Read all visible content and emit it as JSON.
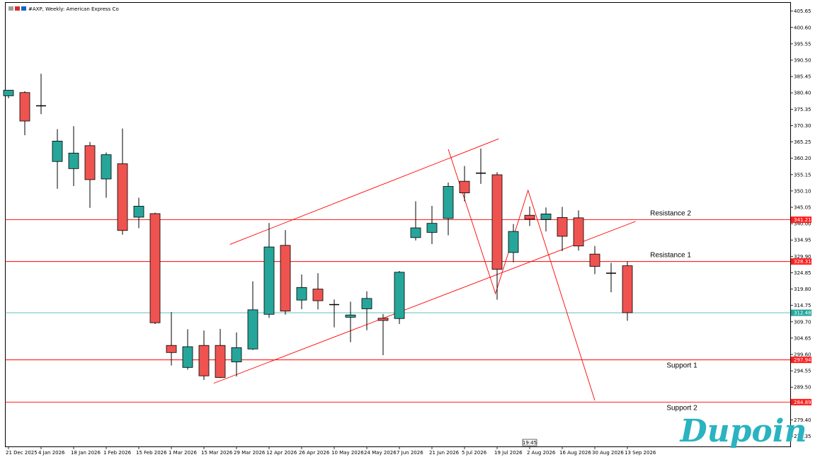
{
  "header": {
    "title": "#AXP, Weekly:  American Express Co"
  },
  "brand": {
    "logo_text": "Dupoin"
  },
  "time_badge": "19:45",
  "colors": {
    "bull": "#26a69a",
    "bear": "#ef5350",
    "level_line": "#ff0000",
    "current_line": "#4db6ac",
    "tag_red": "#ff1f1f",
    "tag_teal": "#26a69a",
    "logo": "#2ab3c0"
  },
  "chart_data": {
    "type": "candlestick",
    "instrument": "#AXP",
    "timeframe": "Weekly",
    "ylim": [
      271.2,
      408.2
    ],
    "y_ticks": [
      405.65,
      400.6,
      395.55,
      390.5,
      385.45,
      380.4,
      375.35,
      370.3,
      365.25,
      360.2,
      355.15,
      350.1,
      345.05,
      340.0,
      334.95,
      329.9,
      324.85,
      319.8,
      314.75,
      309.7,
      304.65,
      299.6,
      294.55,
      289.5,
      284.45,
      279.4,
      274.35
    ],
    "x_ticks": [
      "21 Dec 2025",
      "4 Jan 2026",
      "18 Jan 2026",
      "1 Feb 2026",
      "15 Feb 2026",
      "1 Mar 2026",
      "15 Mar 2026",
      "29 Mar 2026",
      "12 Apr 2026",
      "26 Apr 2026",
      "10 May 2026",
      "24 May 2026",
      "7 Jun 2026",
      "21 Jun 2026",
      "5 Jul 2026",
      "19 Jul 2026",
      "2 Aug 2026",
      "16 Aug 2026",
      "30 Aug 2026",
      "13 Sep 2026"
    ],
    "candles": [
      {
        "o": 379.5,
        "h": 381.3,
        "l": 378.7,
        "c": 381.2
      },
      {
        "o": 380.5,
        "h": 380.9,
        "l": 367.3,
        "c": 371.7
      },
      {
        "o": 376.4,
        "h": 386.3,
        "l": 373.8,
        "c": 376.4
      },
      {
        "o": 359.2,
        "h": 369.2,
        "l": 350.8,
        "c": 365.5
      },
      {
        "o": 357.0,
        "h": 370.1,
        "l": 351.6,
        "c": 361.8
      },
      {
        "o": 364.1,
        "h": 365.2,
        "l": 344.9,
        "c": 353.6
      },
      {
        "o": 353.8,
        "h": 362.0,
        "l": 348.0,
        "c": 361.3
      },
      {
        "o": 358.5,
        "h": 369.4,
        "l": 336.6,
        "c": 337.9
      },
      {
        "o": 342.0,
        "h": 348.0,
        "l": 338.6,
        "c": 345.4
      },
      {
        "o": 343.1,
        "h": 343.4,
        "l": 309.0,
        "c": 309.4
      },
      {
        "o": 302.4,
        "h": 312.7,
        "l": 296.2,
        "c": 300.2
      },
      {
        "o": 295.6,
        "h": 307.4,
        "l": 294.9,
        "c": 302.0
      },
      {
        "o": 302.4,
        "h": 307.0,
        "l": 291.7,
        "c": 293.0
      },
      {
        "o": 302.4,
        "h": 307.5,
        "l": 292.3,
        "c": 292.5
      },
      {
        "o": 297.3,
        "h": 306.4,
        "l": 292.8,
        "c": 301.7
      },
      {
        "o": 301.3,
        "h": 322.2,
        "l": 301.0,
        "c": 313.4
      },
      {
        "o": 312.0,
        "h": 340.2,
        "l": 310.9,
        "c": 332.8
      },
      {
        "o": 333.3,
        "h": 338.0,
        "l": 311.9,
        "c": 313.0
      },
      {
        "o": 316.4,
        "h": 324.3,
        "l": 313.6,
        "c": 320.3
      },
      {
        "o": 319.8,
        "h": 324.7,
        "l": 313.5,
        "c": 316.2
      },
      {
        "o": 315.0,
        "h": 316.6,
        "l": 308.0,
        "c": 314.8
      },
      {
        "o": 311.1,
        "h": 315.9,
        "l": 303.4,
        "c": 311.8
      },
      {
        "o": 313.7,
        "h": 319.1,
        "l": 307.1,
        "c": 316.9
      },
      {
        "o": 310.8,
        "h": 312.1,
        "l": 299.4,
        "c": 310.1
      },
      {
        "o": 310.7,
        "h": 325.4,
        "l": 309.0,
        "c": 325.0
      },
      {
        "o": 335.7,
        "h": 346.9,
        "l": 334.8,
        "c": 338.7
      },
      {
        "o": 337.3,
        "h": 345.5,
        "l": 333.7,
        "c": 340.1
      },
      {
        "o": 341.6,
        "h": 352.7,
        "l": 336.4,
        "c": 351.5
      },
      {
        "o": 353.1,
        "h": 357.8,
        "l": 346.9,
        "c": 349.5
      },
      {
        "o": 355.4,
        "h": 363.2,
        "l": 352.3,
        "c": 355.6
      },
      {
        "o": 355.1,
        "h": 355.9,
        "l": 316.5,
        "c": 325.9
      },
      {
        "o": 331.1,
        "h": 339.9,
        "l": 328.1,
        "c": 337.6
      },
      {
        "o": 342.6,
        "h": 345.3,
        "l": 339.3,
        "c": 341.4
      },
      {
        "o": 341.3,
        "h": 345.0,
        "l": 337.6,
        "c": 343.0
      },
      {
        "o": 341.9,
        "h": 345.2,
        "l": 331.5,
        "c": 336.1
      },
      {
        "o": 341.8,
        "h": 344.1,
        "l": 331.7,
        "c": 333.1
      },
      {
        "o": 330.6,
        "h": 333.1,
        "l": 324.4,
        "c": 326.8
      },
      {
        "o": 324.7,
        "h": 327.9,
        "l": 318.8,
        "c": 324.6
      },
      {
        "o": 327.0,
        "h": 328.3,
        "l": 310.0,
        "c": 312.5
      }
    ],
    "levels": [
      {
        "name": "Resistance 2",
        "value": 341.21,
        "tag": "341.21"
      },
      {
        "name": "Resistance 1",
        "value": 328.31,
        "tag": "328.31"
      },
      {
        "name": "Support 1",
        "value": 297.94,
        "tag": "297.94"
      },
      {
        "name": "Support 2",
        "value": 284.89,
        "tag": "284.89"
      }
    ],
    "current_price": {
      "value": 312.48,
      "tag": "312.48"
    },
    "channel": {
      "upper": [
        {
          "week": 13.6,
          "price": 333.6
        },
        {
          "week": 30.1,
          "price": 366.2
        }
      ],
      "lower": [
        {
          "week": 12.6,
          "price": 290.7
        },
        {
          "week": 38.5,
          "price": 340.7
        }
      ]
    },
    "pattern": [
      {
        "week": 27.0,
        "price": 363.0
      },
      {
        "week": 29.9,
        "price": 318.4
      },
      {
        "week": 31.9,
        "price": 350.3
      },
      {
        "week": 36.0,
        "price": 285.4
      }
    ]
  }
}
